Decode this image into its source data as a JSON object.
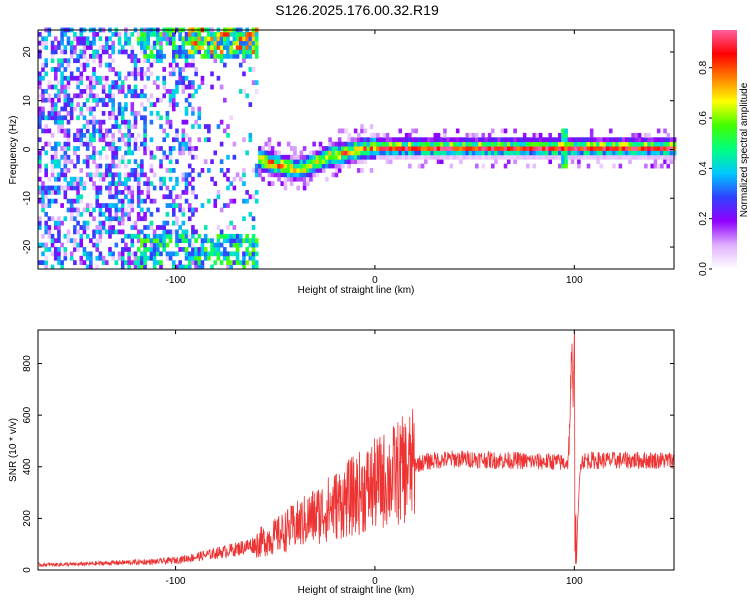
{
  "title": "S126.2025.176.00.32.R19",
  "chart_data": [
    {
      "type": "heatmap",
      "xlabel": "Height of straight line (km)",
      "ylabel": "Frequency (Hz)",
      "xlim": [
        -169,
        150
      ],
      "ylim": [
        -24.5,
        24.5
      ],
      "xticks": [
        -100,
        0,
        100
      ],
      "yticks": [
        -20,
        -10,
        0,
        10,
        20
      ],
      "colorbar": {
        "label": "Normalized spectral amplitude",
        "range": [
          0.0,
          0.95
        ],
        "ticks": [
          0.0,
          0.2,
          0.4,
          0.6,
          0.8
        ],
        "colors": [
          "#ffffff",
          "#e0b0ff",
          "#9000ff",
          "#3040ff",
          "#00c8ff",
          "#00ff80",
          "#40ff00",
          "#ffff00",
          "#ff8000",
          "#ff0000",
          "#ff60a0"
        ]
      },
      "ridge": [
        {
          "x": -60,
          "y": -2
        },
        {
          "x": -55,
          "y": -3
        },
        {
          "x": -50,
          "y": -3.5
        },
        {
          "x": -45,
          "y": -4
        },
        {
          "x": -40,
          "y": -4.5
        },
        {
          "x": -35,
          "y": -4
        },
        {
          "x": -30,
          "y": -3
        },
        {
          "x": -25,
          "y": -2
        },
        {
          "x": -20,
          "y": -1.5
        },
        {
          "x": -15,
          "y": -1
        },
        {
          "x": -10,
          "y": -0.5
        },
        {
          "x": 0,
          "y": 0
        },
        {
          "x": 10,
          "y": 0
        },
        {
          "x": 50,
          "y": 0
        },
        {
          "x": 100,
          "y": 0
        },
        {
          "x": 150,
          "y": 0
        }
      ]
    },
    {
      "type": "line",
      "xlabel": "Height of straight line (km)",
      "ylabel": "SNR (10 * v/v)",
      "xlim": [
        -169,
        150
      ],
      "ylim": [
        0,
        930
      ],
      "xticks": [
        -100,
        0,
        100
      ],
      "yticks": [
        0,
        200,
        400,
        600,
        800
      ],
      "color": "#ee3333",
      "series": [
        {
          "x": [
            -169,
            -150,
            -130,
            -110,
            -100,
            -90,
            -80,
            -70,
            -60,
            -50,
            -40,
            -30,
            -20,
            -10,
            0,
            10,
            20,
            30,
            40,
            50,
            60,
            70,
            80,
            90,
            95,
            97,
            99,
            100,
            101,
            103,
            105,
            110,
            120,
            130,
            140,
            150
          ],
          "y": [
            20,
            22,
            28,
            32,
            38,
            50,
            65,
            80,
            100,
            130,
            170,
            210,
            250,
            290,
            330,
            370,
            410,
            425,
            430,
            430,
            425,
            425,
            420,
            420,
            415,
            420,
            880,
            920,
            40,
            420,
            425,
            425,
            425,
            425,
            425,
            425
          ]
        }
      ]
    }
  ]
}
